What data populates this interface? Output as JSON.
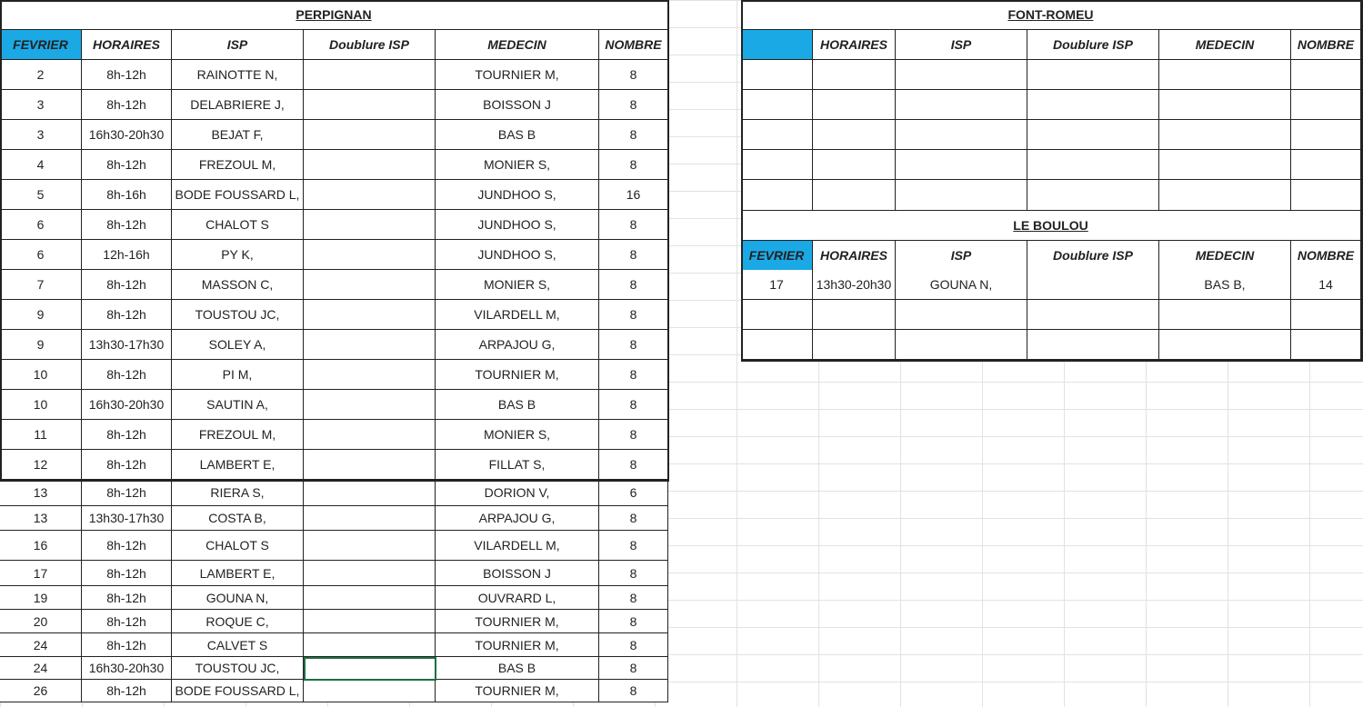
{
  "perpignan": {
    "title": "PERPIGNAN",
    "headers": [
      "FEVRIER",
      "HORAIRES",
      "ISP",
      "Doublure  ISP",
      "MEDECIN",
      "NOMBRE"
    ],
    "rows": [
      [
        "2",
        "8h-12h",
        "RAINOTTE N,",
        "",
        "TOURNIER M,",
        "8"
      ],
      [
        "3",
        "8h-12h",
        "DELABRIERE J,",
        "",
        "BOISSON J",
        "8"
      ],
      [
        "3",
        "16h30-20h30",
        "BEJAT F,",
        "",
        "BAS B",
        "8"
      ],
      [
        "4",
        "8h-12h",
        "FREZOUL M,",
        "",
        "MONIER S,",
        "8"
      ],
      [
        "5",
        "8h-16h",
        "BODE FOUSSARD L,",
        "",
        "JUNDHOO S,",
        "16"
      ],
      [
        "6",
        "8h-12h",
        "CHALOT S",
        "",
        "JUNDHOO S,",
        "8"
      ],
      [
        "6",
        "12h-16h",
        "PY K,",
        "",
        "JUNDHOO S,",
        "8"
      ],
      [
        "7",
        "8h-12h",
        "MASSON C,",
        "",
        "MONIER S,",
        "8"
      ],
      [
        "9",
        "8h-12h",
        "TOUSTOU JC,",
        "",
        "VILARDELL M,",
        "8"
      ],
      [
        "9",
        "13h30-17h30",
        "SOLEY A,",
        "",
        "ARPAJOU G,",
        "8"
      ],
      [
        "10",
        "8h-12h",
        "PI M,",
        "",
        "TOURNIER M,",
        "8"
      ],
      [
        "10",
        "16h30-20h30",
        "SAUTIN A,",
        "",
        "BAS B",
        "8"
      ],
      [
        "11",
        "8h-12h",
        "FREZOUL M,",
        "",
        "MONIER S,",
        "8"
      ],
      [
        "12",
        "8h-12h",
        "LAMBERT E,",
        "",
        "FILLAT S,",
        "8"
      ],
      [
        "13",
        "8h-12h",
        "RIERA S,",
        "",
        "DORION V,",
        "6"
      ],
      [
        "13",
        "13h30-17h30",
        "COSTA B,",
        "",
        "ARPAJOU G,",
        "8"
      ],
      [
        "16",
        "8h-12h",
        "CHALOT S",
        "",
        "VILARDELL M,",
        "8"
      ],
      [
        "17",
        "8h-12h",
        "LAMBERT E,",
        "",
        "BOISSON J",
        "8"
      ],
      [
        "19",
        "8h-12h",
        "GOUNA N,",
        "",
        "OUVRARD L,",
        "8"
      ],
      [
        "20",
        "8h-12h",
        "ROQUE C,",
        "",
        "TOURNIER M,",
        "8"
      ],
      [
        "24",
        "8h-12h",
        "CALVET S",
        "",
        "TOURNIER M,",
        "8"
      ],
      [
        "24",
        "16h30-20h30",
        "TOUSTOU JC,",
        "",
        "BAS B",
        "8"
      ],
      [
        "26",
        "8h-12h",
        "BODE FOUSSARD L,",
        "",
        "TOURNIER M,",
        "8"
      ]
    ]
  },
  "font_romeu": {
    "title": "FONT-ROMEU",
    "headers": [
      "",
      "HORAIRES",
      "ISP",
      "Doublure  ISP",
      "MEDECIN",
      "NOMBRE"
    ],
    "rows": [
      [
        "",
        "",
        "",
        "",
        "",
        ""
      ],
      [
        "",
        "",
        "",
        "",
        "",
        ""
      ],
      [
        "",
        "",
        "",
        "",
        "",
        ""
      ],
      [
        "",
        "",
        "",
        "",
        "",
        ""
      ],
      [
        "",
        "",
        "",
        "",
        "",
        ""
      ]
    ]
  },
  "le_boulou": {
    "title": "LE BOULOU",
    "headers": [
      "FEVRIER",
      "HORAIRES",
      "ISP",
      "Doublure  ISP",
      "MEDECIN",
      "NOMBRE"
    ],
    "rows": [
      [
        "17",
        "13h30-20h30",
        "GOUNA N,",
        "",
        "BAS B,",
        "14"
      ],
      [
        "",
        "",
        "",
        "",
        "",
        ""
      ],
      [
        "",
        "",
        "",
        "",
        "",
        ""
      ]
    ]
  },
  "colors": {
    "header_highlight": "#1ba9e6",
    "selection": "#1e6e42"
  }
}
